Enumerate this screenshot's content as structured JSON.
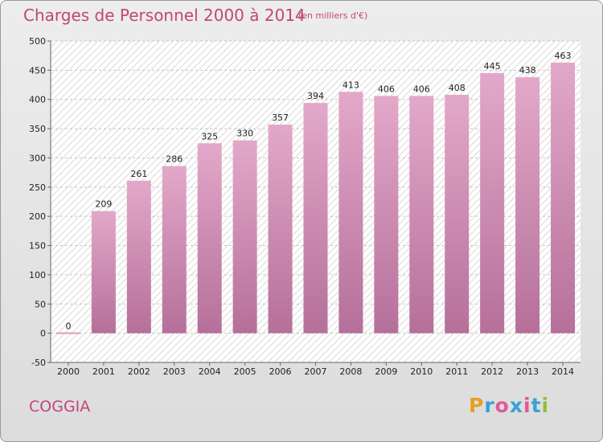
{
  "title": "Charges de Personnel 2000 à 2014",
  "subtitle": "(en milliers d'€)",
  "commune": "COGGIA",
  "logo": {
    "letters": [
      "P",
      "r",
      "o",
      "x",
      "i",
      "t",
      "i"
    ],
    "colors": [
      "#e8a020",
      "#3aa0d8",
      "#e05a9a",
      "#3aa0d8",
      "#e05a9a",
      "#3aa0d8",
      "#8cc23a"
    ]
  },
  "colors": {
    "accent": "#c2457a",
    "bar_top": "#e3a8c9",
    "bar_bottom": "#b5709a"
  },
  "chart_data": {
    "type": "bar",
    "categories": [
      "2000",
      "2001",
      "2002",
      "2003",
      "2004",
      "2005",
      "2006",
      "2007",
      "2008",
      "2009",
      "2010",
      "2011",
      "2012",
      "2013",
      "2014"
    ],
    "values": [
      0,
      209,
      261,
      286,
      325,
      330,
      357,
      394,
      413,
      406,
      406,
      408,
      445,
      438,
      463
    ],
    "ylim": [
      -50,
      500
    ],
    "yticks": [
      -50,
      0,
      50,
      100,
      150,
      200,
      250,
      300,
      350,
      400,
      450,
      500
    ],
    "grid": true
  }
}
